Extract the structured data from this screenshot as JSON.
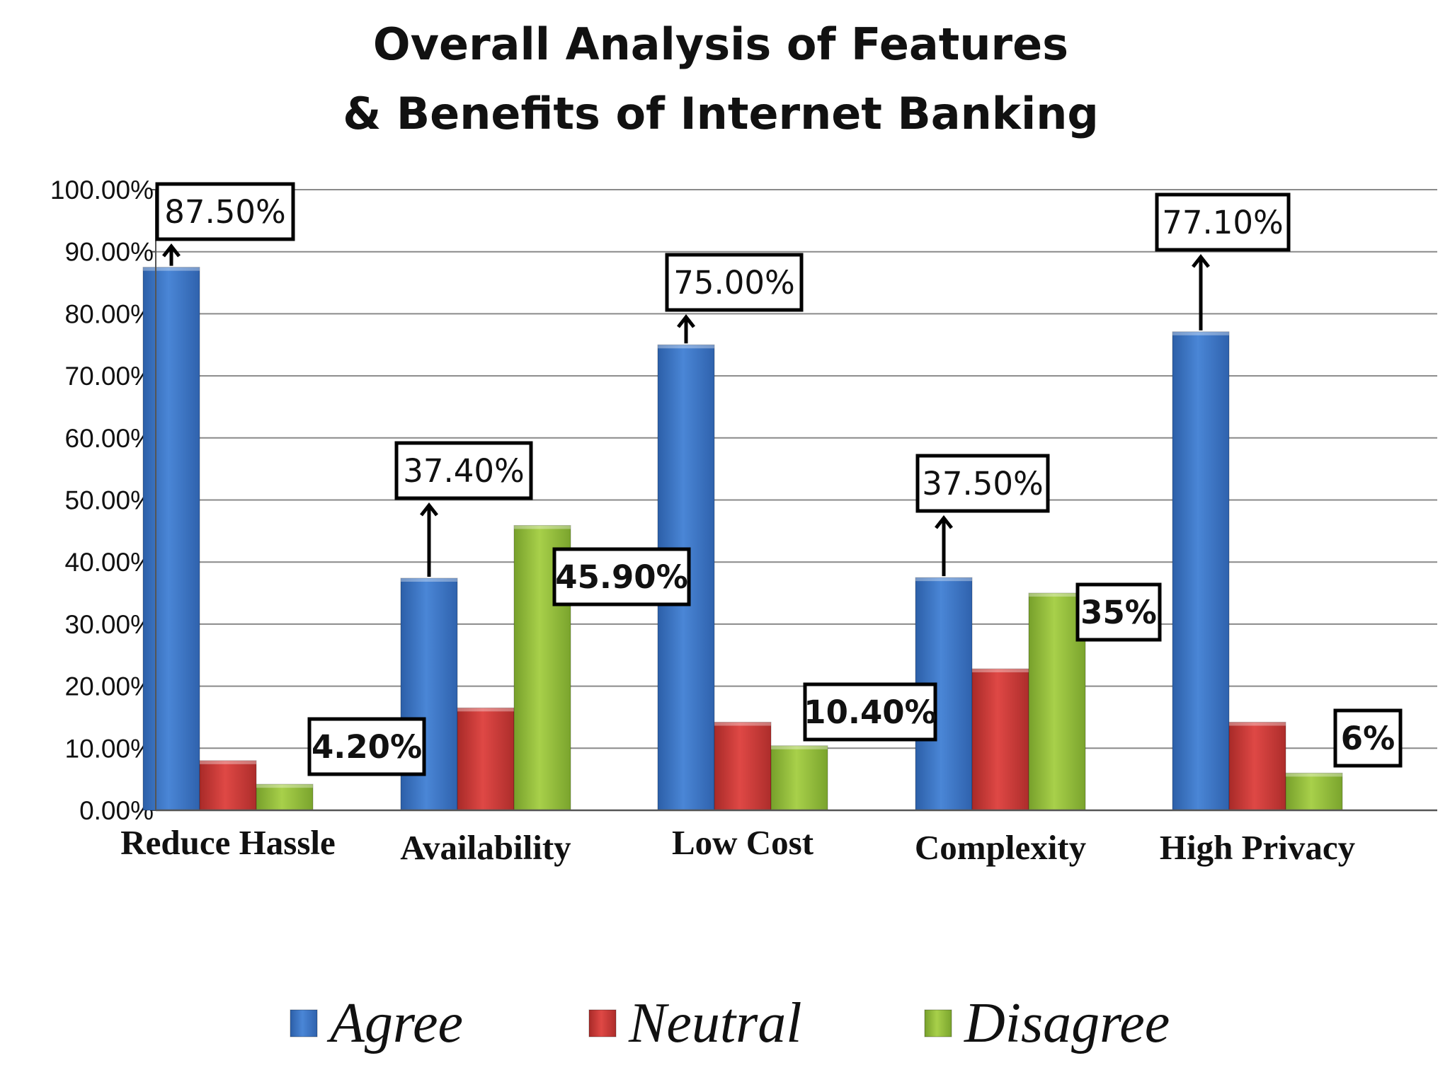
{
  "chart_data": {
    "type": "bar",
    "title": "Overall Analysis of Features & Benefits of Internet Banking",
    "title_lines": [
      "Overall Analysis of Features",
      "& Benefits of Internet Banking"
    ],
    "categories": [
      "Reduce Hassle",
      "Availability",
      "Low Cost",
      "Complexity",
      "High Privacy"
    ],
    "series": [
      {
        "name": "Agree",
        "color": "#3f78c8",
        "values": [
          87.5,
          37.4,
          75.0,
          37.5,
          77.1
        ]
      },
      {
        "name": "Neutral",
        "color": "#cf3b38",
        "values": [
          8.0,
          16.5,
          14.2,
          22.8,
          14.2
        ]
      },
      {
        "name": "Disagree",
        "color": "#96bf3c",
        "values": [
          4.2,
          45.9,
          10.4,
          35.0,
          6.0
        ]
      }
    ],
    "ylim": [
      0,
      100
    ],
    "yticks": [
      0,
      10,
      20,
      30,
      40,
      50,
      60,
      70,
      80,
      90,
      100
    ],
    "ytick_labels": [
      "0.00%",
      "10.00%",
      "20.00%",
      "30.00%",
      "40.00%",
      "50.00%",
      "60.00%",
      "70.00%",
      "80.00%",
      "90.00%",
      "100.00%"
    ],
    "xlabel": "",
    "ylabel": "",
    "grid": true,
    "legend_position": "bottom",
    "annotations": [
      {
        "text": "87.50%",
        "category": "Reduce Hassle",
        "series": "Agree",
        "style": "plain",
        "arrow": true
      },
      {
        "text": "4.20%",
        "category": "Reduce Hassle",
        "series": "Disagree",
        "style": "bold",
        "arrow": false
      },
      {
        "text": "37.40%",
        "category": "Availability",
        "series": "Agree",
        "style": "plain",
        "arrow": true
      },
      {
        "text": "45.90%",
        "category": "Availability",
        "series": "Disagree",
        "style": "bold",
        "arrow": false
      },
      {
        "text": "75.00%",
        "category": "Low Cost",
        "series": "Agree",
        "style": "plain",
        "arrow": true
      },
      {
        "text": "10.40%",
        "category": "Low Cost",
        "series": "Disagree",
        "style": "bold",
        "arrow": false
      },
      {
        "text": "37.50%",
        "category": "Complexity",
        "series": "Agree",
        "style": "plain",
        "arrow": true
      },
      {
        "text": "35%",
        "category": "Complexity",
        "series": "Disagree",
        "style": "bold",
        "arrow": false
      },
      {
        "text": "77.10%",
        "category": "High Privacy",
        "series": "Agree",
        "style": "plain",
        "arrow": true
      },
      {
        "text": "6%",
        "category": "High Privacy",
        "series": "Disagree",
        "style": "bold",
        "arrow": false
      }
    ]
  }
}
